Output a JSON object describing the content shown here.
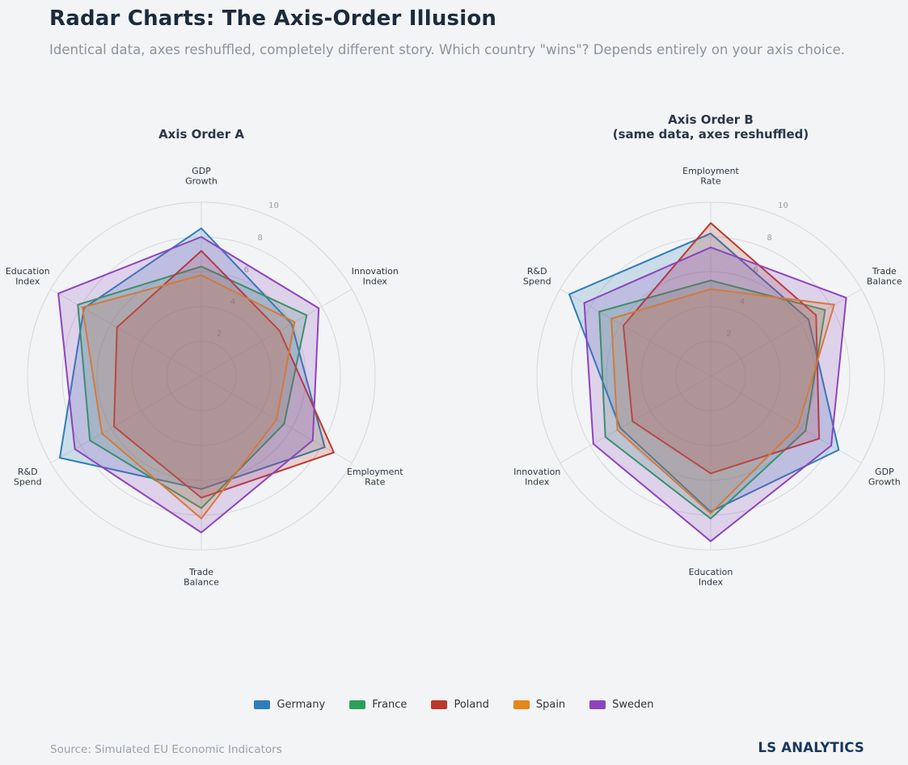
{
  "page": {
    "title": "Radar Charts: The Axis-Order Illusion",
    "subtitle": "Identical data, axes reshuffled, completely different story. Which country \"wins\"? Depends entirely on your axis choice.",
    "source": "Source: Simulated EU Economic Indicators",
    "brand": "LS ANALYTICS"
  },
  "legend": [
    {
      "label": "Germany",
      "color": "#2e7eb8"
    },
    {
      "label": "France",
      "color": "#2ba05a"
    },
    {
      "label": "Poland",
      "color": "#bb3a2b"
    },
    {
      "label": "Spain",
      "color": "#e5871d"
    },
    {
      "label": "Sweden",
      "color": "#8e44bd"
    }
  ],
  "chart_data": [
    {
      "type": "radar",
      "title": "Axis Order A",
      "axes": [
        "GDP\nGrowth",
        "Innovation\nIndex",
        "Employment\nRate",
        "Trade\nBalance",
        "R&D\nSpend",
        "Education\nIndex"
      ],
      "rmax": 10,
      "rticks": [
        2,
        4,
        6,
        8,
        10
      ],
      "grid": true,
      "series": [
        {
          "name": "Germany",
          "values": [
            8.5,
            6.0,
            8.2,
            6.5,
            9.4,
            7.8
          ]
        },
        {
          "name": "France",
          "values": [
            6.3,
            7.0,
            5.5,
            7.6,
            7.4,
            8.2
          ]
        },
        {
          "name": "Poland",
          "values": [
            7.2,
            5.2,
            8.8,
            7.0,
            5.8,
            5.6
          ]
        },
        {
          "name": "Spain",
          "values": [
            5.8,
            6.2,
            5.0,
            8.2,
            6.6,
            7.9
          ]
        },
        {
          "name": "Sweden",
          "values": [
            8.0,
            7.8,
            7.4,
            9.0,
            8.4,
            9.5
          ]
        }
      ]
    },
    {
      "type": "radar",
      "title": "Axis Order B\n(same data, axes reshuffled)",
      "axes": [
        "Employment\nRate",
        "Trade\nBalance",
        "GDP\nGrowth",
        "Education\nIndex",
        "Innovation\nIndex",
        "R&D\nSpend"
      ],
      "rmax": 10,
      "rticks": [
        2,
        4,
        6,
        8,
        10
      ],
      "grid": true,
      "series": [
        {
          "name": "Germany",
          "values": [
            8.2,
            6.5,
            8.5,
            7.8,
            6.0,
            9.4
          ]
        },
        {
          "name": "France",
          "values": [
            5.5,
            7.6,
            6.3,
            8.2,
            7.0,
            7.4
          ]
        },
        {
          "name": "Poland",
          "values": [
            8.8,
            7.0,
            7.2,
            5.6,
            5.2,
            5.8
          ]
        },
        {
          "name": "Spain",
          "values": [
            5.0,
            8.2,
            5.8,
            7.9,
            6.2,
            6.6
          ]
        },
        {
          "name": "Sweden",
          "values": [
            7.4,
            9.0,
            8.0,
            9.5,
            7.8,
            8.4
          ]
        }
      ]
    }
  ]
}
